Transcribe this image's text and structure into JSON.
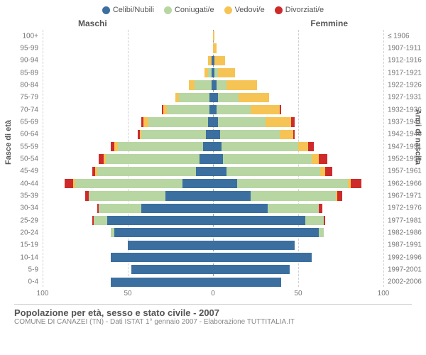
{
  "legend": [
    {
      "label": "Celibi/Nubili",
      "color": "#3b6fa0"
    },
    {
      "label": "Coniugati/e",
      "color": "#b7d6a2"
    },
    {
      "label": "Vedovi/e",
      "color": "#f6c454"
    },
    {
      "label": "Divorziati/e",
      "color": "#cf2a2a"
    }
  ],
  "side_labels": {
    "male": "Maschi",
    "female": "Femmine"
  },
  "y_axis": {
    "left_title": "Fasce di età",
    "right_title": "Anni di nascita"
  },
  "x_axis": {
    "max": 100,
    "ticks": [
      100,
      50,
      0,
      50,
      100
    ]
  },
  "colors": {
    "celibi": "#3b6fa0",
    "coniugati": "#b7d6a2",
    "vedovi": "#f6c454",
    "divorziati": "#cf2a2a",
    "grid": "#cfcfcf",
    "zero": "#999999",
    "bg": "#ffffff"
  },
  "rows": [
    {
      "age": "100+",
      "birth": "≤ 1906",
      "m": [
        0,
        0,
        0,
        0
      ],
      "f": [
        0,
        0,
        1,
        0
      ]
    },
    {
      "age": "95-99",
      "birth": "1907-1911",
      "m": [
        0,
        0,
        0,
        0
      ],
      "f": [
        0,
        0,
        2,
        0
      ]
    },
    {
      "age": "90-94",
      "birth": "1912-1916",
      "m": [
        1,
        0,
        2,
        0
      ],
      "f": [
        1,
        0,
        6,
        0
      ]
    },
    {
      "age": "85-89",
      "birth": "1917-1921",
      "m": [
        1,
        2,
        2,
        0
      ],
      "f": [
        1,
        2,
        10,
        0
      ]
    },
    {
      "age": "80-84",
      "birth": "1922-1926",
      "m": [
        1,
        10,
        3,
        0
      ],
      "f": [
        2,
        6,
        18,
        0
      ]
    },
    {
      "age": "75-79",
      "birth": "1927-1931",
      "m": [
        2,
        18,
        2,
        0
      ],
      "f": [
        3,
        12,
        18,
        0
      ]
    },
    {
      "age": "70-74",
      "birth": "1932-1936",
      "m": [
        2,
        25,
        2,
        1
      ],
      "f": [
        2,
        20,
        17,
        1
      ]
    },
    {
      "age": "65-69",
      "birth": "1937-1941",
      "m": [
        3,
        35,
        3,
        1
      ],
      "f": [
        3,
        28,
        15,
        2
      ]
    },
    {
      "age": "60-64",
      "birth": "1942-1946",
      "m": [
        4,
        38,
        1,
        1
      ],
      "f": [
        4,
        35,
        8,
        1
      ]
    },
    {
      "age": "55-59",
      "birth": "1947-1951",
      "m": [
        6,
        50,
        2,
        2
      ],
      "f": [
        5,
        45,
        6,
        3
      ]
    },
    {
      "age": "50-54",
      "birth": "1952-1956",
      "m": [
        8,
        55,
        1,
        3
      ],
      "f": [
        6,
        52,
        4,
        5
      ]
    },
    {
      "age": "45-49",
      "birth": "1957-1961",
      "m": [
        10,
        58,
        1,
        2
      ],
      "f": [
        8,
        55,
        3,
        4
      ]
    },
    {
      "age": "40-44",
      "birth": "1962-1966",
      "m": [
        18,
        63,
        1,
        5
      ],
      "f": [
        14,
        65,
        2,
        6
      ]
    },
    {
      "age": "35-39",
      "birth": "1967-1971",
      "m": [
        28,
        45,
        0,
        2
      ],
      "f": [
        22,
        50,
        1,
        3
      ]
    },
    {
      "age": "30-34",
      "birth": "1972-1976",
      "m": [
        42,
        25,
        0,
        1
      ],
      "f": [
        32,
        30,
        0,
        2
      ]
    },
    {
      "age": "25-29",
      "birth": "1977-1981",
      "m": [
        62,
        8,
        0,
        1
      ],
      "f": [
        54,
        11,
        0,
        1
      ]
    },
    {
      "age": "20-24",
      "birth": "1982-1986",
      "m": [
        58,
        2,
        0,
        0
      ],
      "f": [
        62,
        3,
        0,
        0
      ]
    },
    {
      "age": "15-19",
      "birth": "1987-1991",
      "m": [
        50,
        0,
        0,
        0
      ],
      "f": [
        48,
        0,
        0,
        0
      ]
    },
    {
      "age": "10-14",
      "birth": "1992-1996",
      "m": [
        60,
        0,
        0,
        0
      ],
      "f": [
        58,
        0,
        0,
        0
      ]
    },
    {
      "age": "5-9",
      "birth": "1997-2001",
      "m": [
        48,
        0,
        0,
        0
      ],
      "f": [
        45,
        0,
        0,
        0
      ]
    },
    {
      "age": "0-4",
      "birth": "2002-2006",
      "m": [
        60,
        0,
        0,
        0
      ],
      "f": [
        40,
        0,
        0,
        0
      ]
    }
  ],
  "footer": {
    "title": "Popolazione per età, sesso e stato civile - 2007",
    "subtitle": "COMUNE DI CANAZEI (TN) - Dati ISTAT 1° gennaio 2007 - Elaborazione TUTTITALIA.IT"
  }
}
